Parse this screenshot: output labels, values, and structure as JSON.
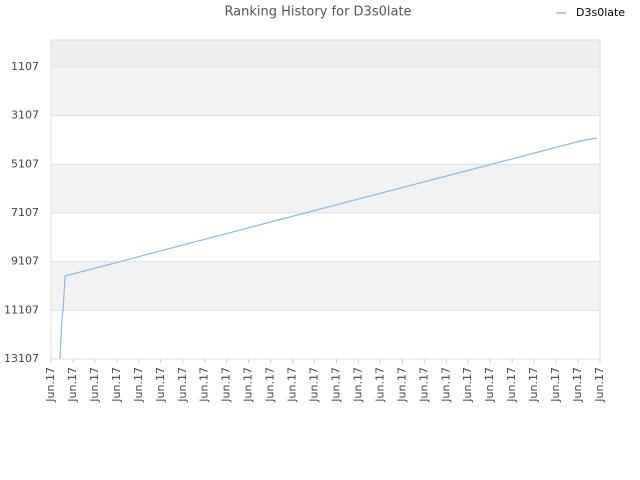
{
  "chart_data": {
    "type": "line",
    "title": "Ranking History for D3s0late",
    "series": [
      {
        "name": "D3s0late",
        "color": "#88bbe8",
        "x": [
          0.41,
          0.45,
          0.5,
          0.55,
          0.64,
          10,
          20,
          24.1,
          24.86
        ],
        "values": [
          13107,
          12327,
          11423,
          11094,
          9697,
          7478,
          5120,
          4150,
          4027
        ]
      }
    ],
    "xlim": [
      0,
      25
    ],
    "xticks": [
      {
        "value": 0,
        "label": "Jun.17"
      },
      {
        "value": 1,
        "label": "Jun.17"
      },
      {
        "value": 2,
        "label": "Jun.17"
      },
      {
        "value": 3,
        "label": "Jun.17"
      },
      {
        "value": 4,
        "label": "Jun.17"
      },
      {
        "value": 5,
        "label": "Jun.17"
      },
      {
        "value": 6,
        "label": "Jun.17"
      },
      {
        "value": 7,
        "label": "Jun.17"
      },
      {
        "value": 8,
        "label": "Jun.17"
      },
      {
        "value": 9,
        "label": "Jun.17"
      },
      {
        "value": 10,
        "label": "Jun.17"
      },
      {
        "value": 11,
        "label": "Jun.17"
      },
      {
        "value": 12,
        "label": "Jun.17"
      },
      {
        "value": 13,
        "label": "Jun.17"
      },
      {
        "value": 14,
        "label": "Jun.17"
      },
      {
        "value": 15,
        "label": "Jun.17"
      },
      {
        "value": 16,
        "label": "Jun.17"
      },
      {
        "value": 17,
        "label": "Jun.17"
      },
      {
        "value": 18,
        "label": "Jun.17"
      },
      {
        "value": 19,
        "label": "Jun.17"
      },
      {
        "value": 20,
        "label": "Jun.17"
      },
      {
        "value": 21,
        "label": "Jun.17"
      },
      {
        "value": 22,
        "label": "Jun.17"
      },
      {
        "value": 23,
        "label": "Jun.17"
      },
      {
        "value": 24,
        "label": "Jun.17"
      },
      {
        "value": 25,
        "label": "Jun.17"
      }
    ],
    "ylim": [
      13107,
      0
    ],
    "yticks": [
      1107,
      3107,
      5107,
      7107,
      9107,
      11107,
      13107
    ],
    "grid": true,
    "legend": "top-right"
  }
}
